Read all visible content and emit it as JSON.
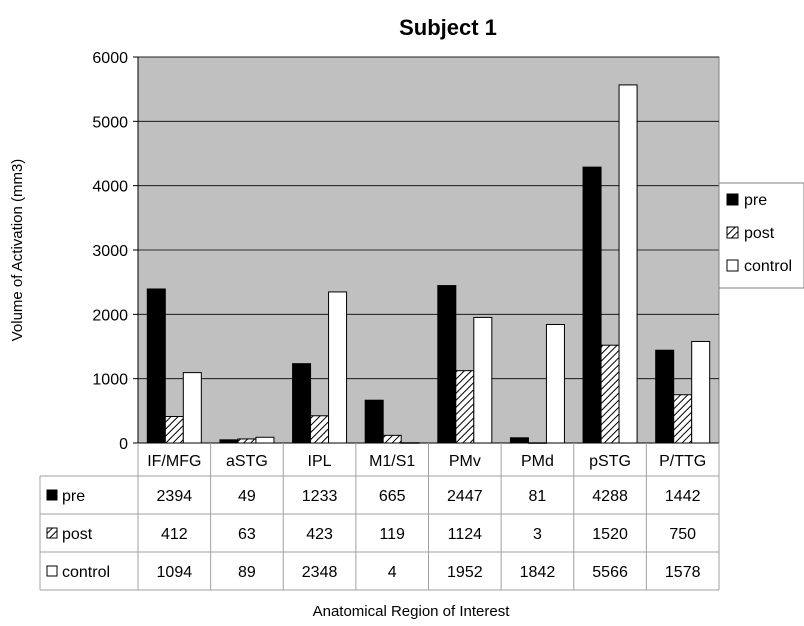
{
  "chart_data": {
    "type": "bar",
    "title": "Subject 1",
    "xlabel": "Anatomical Region of Interest",
    "ylabel": "Volume of Activation (mm3)",
    "ylim": [
      0,
      6000
    ],
    "yticks": [
      0,
      1000,
      2000,
      3000,
      4000,
      5000,
      6000
    ],
    "grid": true,
    "legend_position": "right",
    "plot_background": "#c0c0c0",
    "categories": [
      "IF/MFG",
      "aSTG",
      "IPL",
      "M1/S1",
      "PMv",
      "PMd",
      "pSTG",
      "P/TTG"
    ],
    "series": [
      {
        "name": "pre",
        "fill": "solid-black",
        "values": [
          2394,
          49,
          1233,
          665,
          2447,
          81,
          4288,
          1442
        ]
      },
      {
        "name": "post",
        "fill": "diagonal-hatch",
        "values": [
          412,
          63,
          423,
          119,
          1124,
          3,
          1520,
          750
        ]
      },
      {
        "name": "control",
        "fill": "white",
        "values": [
          1094,
          89,
          2348,
          4,
          1952,
          1842,
          5566,
          1578
        ]
      }
    ],
    "data_table": true
  }
}
